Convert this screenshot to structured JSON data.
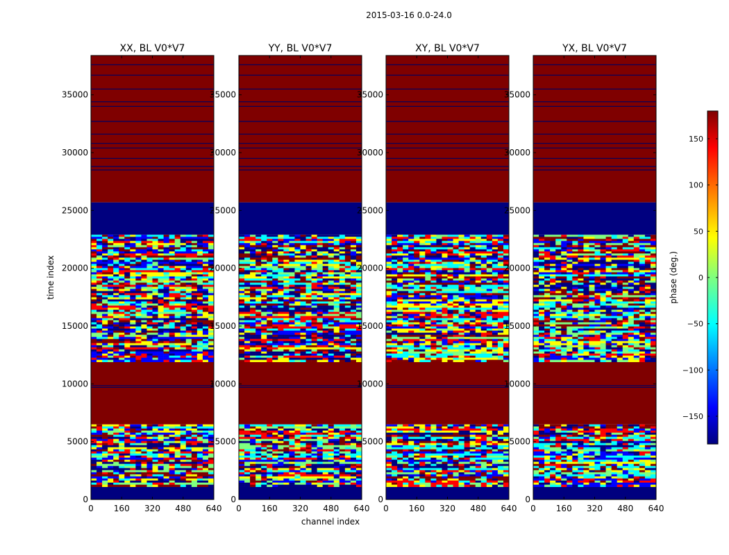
{
  "chart_data": {
    "type": "heatmap",
    "title": "2015-03-16 0.0-24.0",
    "xlabel": "channel index",
    "ylabel": "time index",
    "xlim": [
      0,
      640
    ],
    "ylim": [
      0,
      38400
    ],
    "x_ticks": [
      "0",
      "160",
      "320",
      "480",
      "640"
    ],
    "y_ticks": [
      "0",
      "5000",
      "10000",
      "15000",
      "20000",
      "25000",
      "30000",
      "35000"
    ],
    "panels": [
      {
        "name": "XX, BL V0*V7"
      },
      {
        "name": "YY, BL V0*V7"
      },
      {
        "name": "XY, BL V0*V7"
      },
      {
        "name": "YX, BL V0*V7"
      }
    ],
    "colorbar": {
      "label": "phase (deg.)",
      "range": [
        -180,
        180
      ],
      "ticks": [
        "150",
        "100",
        "50",
        "0",
        "−50",
        "−100",
        "−150"
      ]
    },
    "colormap": [
      "#00007f",
      "#0000ff",
      "#00ffff",
      "#7fff7f",
      "#ffff00",
      "#ff0000",
      "#7f0000"
    ],
    "bands": [
      {
        "from": 0,
        "to": 1100,
        "kind": "blue"
      },
      {
        "from": 1100,
        "to": 6500,
        "kind": "noise"
      },
      {
        "from": 6500,
        "to": 11900,
        "kind": "red"
      },
      {
        "from": 11900,
        "to": 22900,
        "kind": "noise"
      },
      {
        "from": 22900,
        "to": 25700,
        "kind": "blue"
      },
      {
        "from": 25700,
        "to": 38400,
        "kind": "red"
      }
    ],
    "flag_lines": [
      37600,
      36700,
      35500,
      34400,
      34000,
      32700,
      31600,
      30800,
      30400,
      29500,
      28800,
      28500,
      9850,
      9700
    ]
  }
}
